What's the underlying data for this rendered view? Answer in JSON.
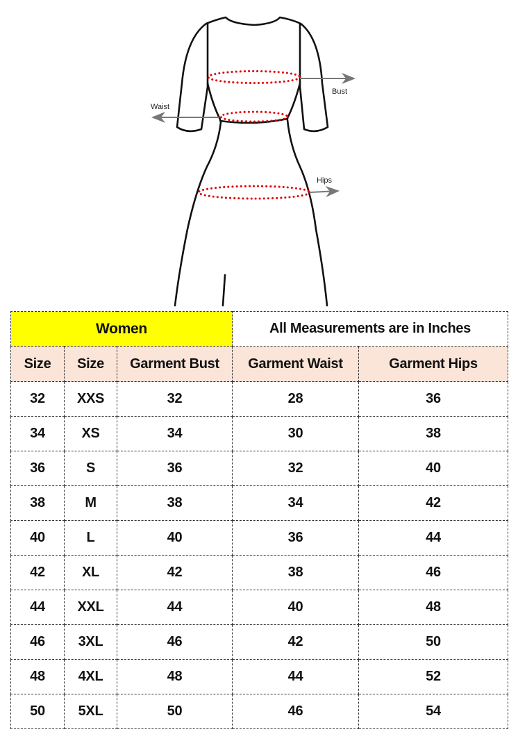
{
  "diagram": {
    "labels": {
      "bust": "Bust",
      "waist": "Waist",
      "hips": "Hips"
    },
    "colors": {
      "outline": "#111111",
      "measure_dots": "#e00000",
      "arrow": "#777777"
    }
  },
  "table": {
    "title": "Women",
    "note": "All Measurements are in Inches",
    "columns": [
      "Size",
      "Size",
      "Garment Bust",
      "Garment Waist",
      "Garment Hips"
    ],
    "rows": [
      [
        "32",
        "XXS",
        "32",
        "28",
        "36"
      ],
      [
        "34",
        "XS",
        "34",
        "30",
        "38"
      ],
      [
        "36",
        "S",
        "36",
        "32",
        "40"
      ],
      [
        "38",
        "M",
        "38",
        "34",
        "42"
      ],
      [
        "40",
        "L",
        "40",
        "36",
        "44"
      ],
      [
        "42",
        "XL",
        "42",
        "38",
        "46"
      ],
      [
        "44",
        "XXL",
        "44",
        "40",
        "48"
      ],
      [
        "46",
        "3XL",
        "46",
        "42",
        "50"
      ],
      [
        "48",
        "4XL",
        "48",
        "44",
        "52"
      ],
      [
        "50",
        "5XL",
        "50",
        "46",
        "54"
      ]
    ],
    "colors": {
      "title_bg": "#ffff00",
      "header_bg": "#fbe4d8"
    }
  }
}
